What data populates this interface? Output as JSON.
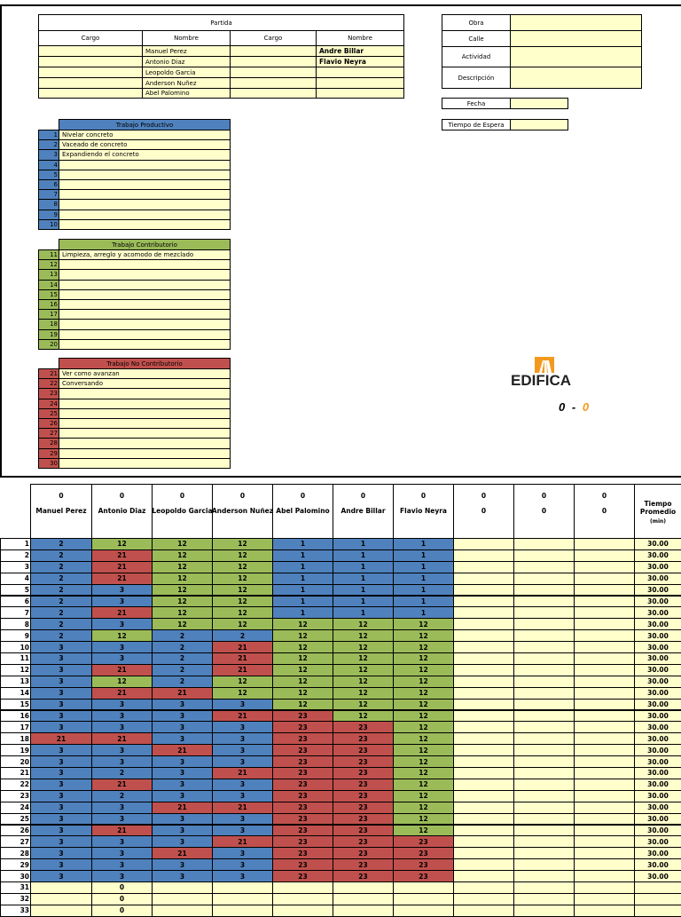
{
  "colors": {
    "productive": "#4f81bd",
    "contributory": "#9bbb59",
    "non_contributory": "#c0504d",
    "input": "#ffffcc",
    "logo_orange": "#f39a1e"
  },
  "partida": {
    "title": "Partida",
    "headers": [
      "Cargo",
      "Nombre",
      "Cargo",
      "Nombre"
    ],
    "rows": [
      [
        "",
        "Manuel Perez",
        "",
        "Andre Billar"
      ],
      [
        "",
        "Antonio Diaz",
        "",
        "Flavio Neyra"
      ],
      [
        "",
        "Leopoldo Garcia",
        "",
        ""
      ],
      [
        "",
        "Anderson Nuñez",
        "",
        ""
      ],
      [
        "",
        "Abel Palomino",
        "",
        ""
      ]
    ]
  },
  "info": {
    "labels": [
      "Obra",
      "Calle",
      "Actividad",
      "Descripción"
    ],
    "values": [
      "",
      "",
      "",
      ""
    ],
    "fecha_label": "Fecha",
    "fecha": "",
    "espera_label": "Tiempo de Espera",
    "espera": ""
  },
  "productivo": {
    "title": "Trabajo Productivo",
    "items": [
      [
        "1",
        "Nivelar concreto"
      ],
      [
        "2",
        "Vaceado de concreto"
      ],
      [
        "3",
        "Expandiendo el concreto"
      ],
      [
        "4",
        ""
      ],
      [
        "5",
        ""
      ],
      [
        "6",
        ""
      ],
      [
        "7",
        ""
      ],
      [
        "8",
        ""
      ],
      [
        "9",
        ""
      ],
      [
        "10",
        ""
      ]
    ]
  },
  "contributorio": {
    "title": "Trabajo Contributorio",
    "items": [
      [
        "11",
        "Limpieza, arreglo y acomodo de mezclado"
      ],
      [
        "12",
        ""
      ],
      [
        "13",
        ""
      ],
      [
        "14",
        ""
      ],
      [
        "15",
        ""
      ],
      [
        "16",
        ""
      ],
      [
        "17",
        ""
      ],
      [
        "18",
        ""
      ],
      [
        "19",
        ""
      ],
      [
        "20",
        ""
      ]
    ]
  },
  "no_contributorio": {
    "title": "Trabajo No Contributorio",
    "items": [
      [
        "21",
        "Ver como avanzan"
      ],
      [
        "22",
        "Conversando"
      ],
      [
        "23",
        ""
      ],
      [
        "24",
        ""
      ],
      [
        "25",
        ""
      ],
      [
        "26",
        ""
      ],
      [
        "27",
        ""
      ],
      [
        "28",
        ""
      ],
      [
        "29",
        ""
      ],
      [
        "30",
        ""
      ]
    ]
  },
  "logo": {
    "text": "EDIFICA"
  },
  "score": {
    "left": "0",
    "sep": "-",
    "right": "0"
  },
  "table": {
    "headers": [
      [
        "0",
        "Manuel Perez"
      ],
      [
        "0",
        "Antonio Diaz"
      ],
      [
        "0",
        "Leopoldo Garcia"
      ],
      [
        "0",
        "Anderson Nuñez"
      ],
      [
        "0",
        "Abel Palomino"
      ],
      [
        "0",
        "Andre Billar"
      ],
      [
        "0",
        "Flavio Neyra"
      ],
      [
        "0",
        "0"
      ],
      [
        "0",
        "0"
      ],
      [
        "0",
        "0"
      ]
    ],
    "time_header": [
      "Tiempo",
      "Promedio",
      "(min)"
    ],
    "rows": [
      [
        "1",
        "2",
        "12",
        "12",
        "12",
        "1",
        "1",
        "1",
        "",
        "",
        "",
        "30.00"
      ],
      [
        "2",
        "2",
        "21",
        "12",
        "12",
        "1",
        "1",
        "1",
        "",
        "",
        "",
        "30.00"
      ],
      [
        "3",
        "2",
        "21",
        "12",
        "12",
        "1",
        "1",
        "1",
        "",
        "",
        "",
        "30.00"
      ],
      [
        "4",
        "2",
        "21",
        "12",
        "12",
        "1",
        "1",
        "1",
        "",
        "",
        "",
        "30.00"
      ],
      [
        "5",
        "2",
        "3",
        "12",
        "12",
        "1",
        "1",
        "1",
        "",
        "",
        "",
        "30.00"
      ],
      [
        "6",
        "2",
        "3",
        "12",
        "12",
        "1",
        "1",
        "1",
        "",
        "",
        "",
        "30.00"
      ],
      [
        "7",
        "2",
        "21",
        "12",
        "12",
        "1",
        "1",
        "1",
        "",
        "",
        "",
        "30.00"
      ],
      [
        "8",
        "2",
        "3",
        "12",
        "12",
        "12",
        "12",
        "12",
        "",
        "",
        "",
        "30.00"
      ],
      [
        "9",
        "2",
        "12",
        "2",
        "2",
        "12",
        "12",
        "12",
        "",
        "",
        "",
        "30.00"
      ],
      [
        "10",
        "3",
        "3",
        "2",
        "21",
        "12",
        "12",
        "12",
        "",
        "",
        "",
        "30.00"
      ],
      [
        "11",
        "3",
        "3",
        "2",
        "21",
        "12",
        "12",
        "12",
        "",
        "",
        "",
        "30.00"
      ],
      [
        "12",
        "3",
        "21",
        "2",
        "21",
        "12",
        "12",
        "12",
        "",
        "",
        "",
        "30.00"
      ],
      [
        "13",
        "3",
        "12",
        "2",
        "12",
        "12",
        "12",
        "12",
        "",
        "",
        "",
        "30.00"
      ],
      [
        "14",
        "3",
        "21",
        "21",
        "12",
        "12",
        "12",
        "12",
        "",
        "",
        "",
        "30.00"
      ],
      [
        "15",
        "3",
        "3",
        "3",
        "3",
        "12",
        "12",
        "12",
        "",
        "",
        "",
        "30.00"
      ],
      [
        "16",
        "3",
        "3",
        "3",
        "21",
        "23",
        "12",
        "12",
        "",
        "",
        "",
        "30.00"
      ],
      [
        "17",
        "3",
        "3",
        "3",
        "3",
        "23",
        "23",
        "12",
        "",
        "",
        "",
        "30.00"
      ],
      [
        "18",
        "21",
        "21",
        "3",
        "3",
        "23",
        "23",
        "12",
        "",
        "",
        "",
        "30.00"
      ],
      [
        "19",
        "3",
        "3",
        "21",
        "3",
        "23",
        "23",
        "12",
        "",
        "",
        "",
        "30.00"
      ],
      [
        "20",
        "3",
        "3",
        "3",
        "3",
        "23",
        "23",
        "12",
        "",
        "",
        "",
        "30.00"
      ],
      [
        "21",
        "3",
        "2",
        "3",
        "21",
        "23",
        "23",
        "12",
        "",
        "",
        "",
        "30.00"
      ],
      [
        "22",
        "3",
        "21",
        "3",
        "3",
        "23",
        "23",
        "12",
        "",
        "",
        "",
        "30.00"
      ],
      [
        "23",
        "3",
        "2",
        "3",
        "3",
        "23",
        "23",
        "12",
        "",
        "",
        "",
        "30.00"
      ],
      [
        "24",
        "3",
        "3",
        "21",
        "21",
        "23",
        "23",
        "12",
        "",
        "",
        "",
        "30.00"
      ],
      [
        "25",
        "3",
        "3",
        "3",
        "3",
        "23",
        "23",
        "12",
        "",
        "",
        "",
        "30.00"
      ],
      [
        "26",
        "3",
        "21",
        "3",
        "3",
        "23",
        "23",
        "12",
        "",
        "",
        "",
        "30.00"
      ],
      [
        "27",
        "3",
        "3",
        "3",
        "21",
        "23",
        "23",
        "23",
        "",
        "",
        "",
        "30.00"
      ],
      [
        "28",
        "3",
        "3",
        "21",
        "3",
        "23",
        "23",
        "23",
        "",
        "",
        "",
        "30.00"
      ],
      [
        "29",
        "3",
        "3",
        "3",
        "3",
        "23",
        "23",
        "23",
        "",
        "",
        "",
        "30.00"
      ],
      [
        "30",
        "3",
        "3",
        "3",
        "3",
        "23",
        "23",
        "23",
        "",
        "",
        "",
        "30.00"
      ],
      [
        "31",
        "",
        "0",
        "",
        "",
        "",
        "",
        "",
        "",
        "",
        "",
        ""
      ],
      [
        "32",
        "",
        "0",
        "",
        "",
        "",
        "",
        "",
        "",
        "",
        "",
        ""
      ],
      [
        "33",
        "",
        "0",
        "",
        "",
        "",
        "",
        "",
        "",
        "",
        "",
        ""
      ]
    ]
  }
}
